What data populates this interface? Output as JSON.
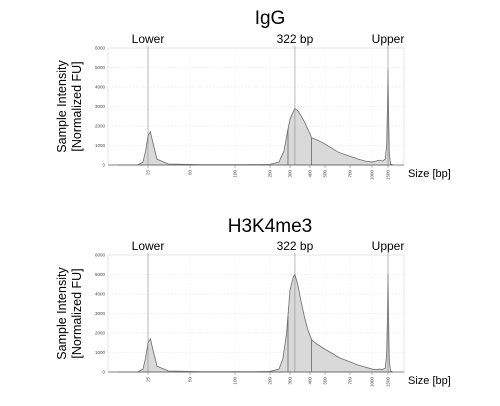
{
  "chart_data": [
    {
      "type": "area",
      "title": "IgG",
      "ylabel_line1": "Sample Intensity",
      "ylabel_line2": "[Normalized FU]",
      "xlabel": "Size [bp]",
      "x_scale": "log",
      "yticks": [
        "0",
        "1000",
        "2000",
        "3000",
        "4000",
        "5000",
        "6000"
      ],
      "ylim": [
        0,
        6000
      ],
      "xticks": [
        "25",
        "50",
        "100",
        "200",
        "300",
        "400",
        "500",
        "700",
        "1000",
        "1500"
      ],
      "markers": [
        {
          "label": "Lower",
          "x": 25
        },
        {
          "label": "322 bp",
          "x": 322
        },
        {
          "label": "Upper",
          "x": 1500
        }
      ],
      "region": [
        288,
        410
      ],
      "series": [
        {
          "x": [
            15,
            21,
            23,
            24,
            25,
            26,
            27,
            29,
            35,
            60,
            120,
            200,
            240,
            265,
            285,
            300,
            315,
            322,
            335,
            350,
            370,
            390,
            410,
            440,
            480,
            540,
            600,
            700,
            800,
            900,
            1000,
            1100,
            1200,
            1300,
            1400,
            1450,
            1480,
            1500,
            1520,
            1550,
            1600,
            1700
          ],
          "y": [
            0,
            0,
            150,
            700,
            1500,
            1700,
            1200,
            300,
            50,
            20,
            15,
            30,
            150,
            700,
            1700,
            2350,
            2750,
            2900,
            2800,
            2550,
            2200,
            1800,
            1400,
            1300,
            1150,
            900,
            650,
            450,
            300,
            200,
            150,
            200,
            250,
            200,
            300,
            1000,
            3000,
            4900,
            3000,
            600,
            50,
            0
          ]
        }
      ]
    },
    {
      "type": "area",
      "title": "H3K4me3",
      "ylabel_line1": "Sample Intensity",
      "ylabel_line2": "[Normalized FU]",
      "xlabel": "Size [bp]",
      "x_scale": "log",
      "yticks": [
        "0",
        "1000",
        "2000",
        "3000",
        "4000",
        "5000",
        "6000"
      ],
      "ylim": [
        0,
        6000
      ],
      "xticks": [
        "25",
        "50",
        "100",
        "200",
        "300",
        "400",
        "500",
        "700",
        "1000",
        "1500"
      ],
      "markers": [
        {
          "label": "Lower",
          "x": 25
        },
        {
          "label": "322 bp",
          "x": 322
        },
        {
          "label": "Upper",
          "x": 1500
        }
      ],
      "region": [
        288,
        410
      ],
      "series": [
        {
          "x": [
            15,
            21,
            23,
            24,
            25,
            26,
            27,
            29,
            35,
            60,
            120,
            200,
            240,
            260,
            280,
            300,
            315,
            322,
            335,
            350,
            370,
            390,
            410,
            440,
            480,
            540,
            600,
            700,
            800,
            900,
            1000,
            1100,
            1200,
            1300,
            1400,
            1450,
            1480,
            1500,
            1520,
            1550,
            1600,
            1700
          ],
          "y": [
            0,
            0,
            150,
            700,
            1500,
            1700,
            1200,
            300,
            50,
            20,
            15,
            30,
            150,
            700,
            2000,
            4200,
            4900,
            5000,
            4500,
            3700,
            2800,
            2100,
            1650,
            1450,
            1250,
            1000,
            750,
            520,
            350,
            250,
            150,
            120,
            150,
            120,
            200,
            900,
            2900,
            5000,
            3000,
            600,
            50,
            0
          ]
        }
      ]
    }
  ]
}
